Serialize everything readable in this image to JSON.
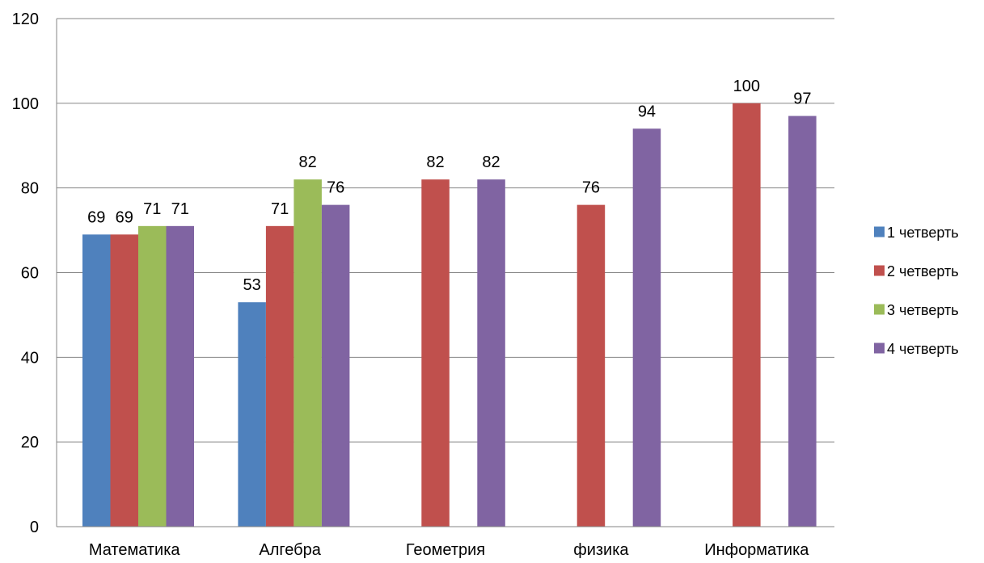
{
  "chart_data": {
    "type": "bar",
    "categories": [
      "Математика",
      "Алгебра",
      "Геометрия",
      "физика",
      "Информатика"
    ],
    "series": [
      {
        "name": "1 четверть",
        "color": "#4F81BD",
        "values": [
          69,
          53,
          null,
          null,
          null
        ]
      },
      {
        "name": "2 четверть",
        "color": "#C0504D",
        "values": [
          69,
          71,
          82,
          76,
          100
        ]
      },
      {
        "name": "3 четверть",
        "color": "#9BBB59",
        "values": [
          71,
          82,
          null,
          null,
          null
        ]
      },
      {
        "name": "4 четверть",
        "color": "#8064A2",
        "values": [
          71,
          76,
          82,
          94,
          97
        ]
      }
    ],
    "yticks": [
      0,
      20,
      40,
      60,
      80,
      100,
      120
    ],
    "ylim": [
      0,
      120
    ],
    "grid": true,
    "legend_position": "right",
    "data_labels": true
  }
}
